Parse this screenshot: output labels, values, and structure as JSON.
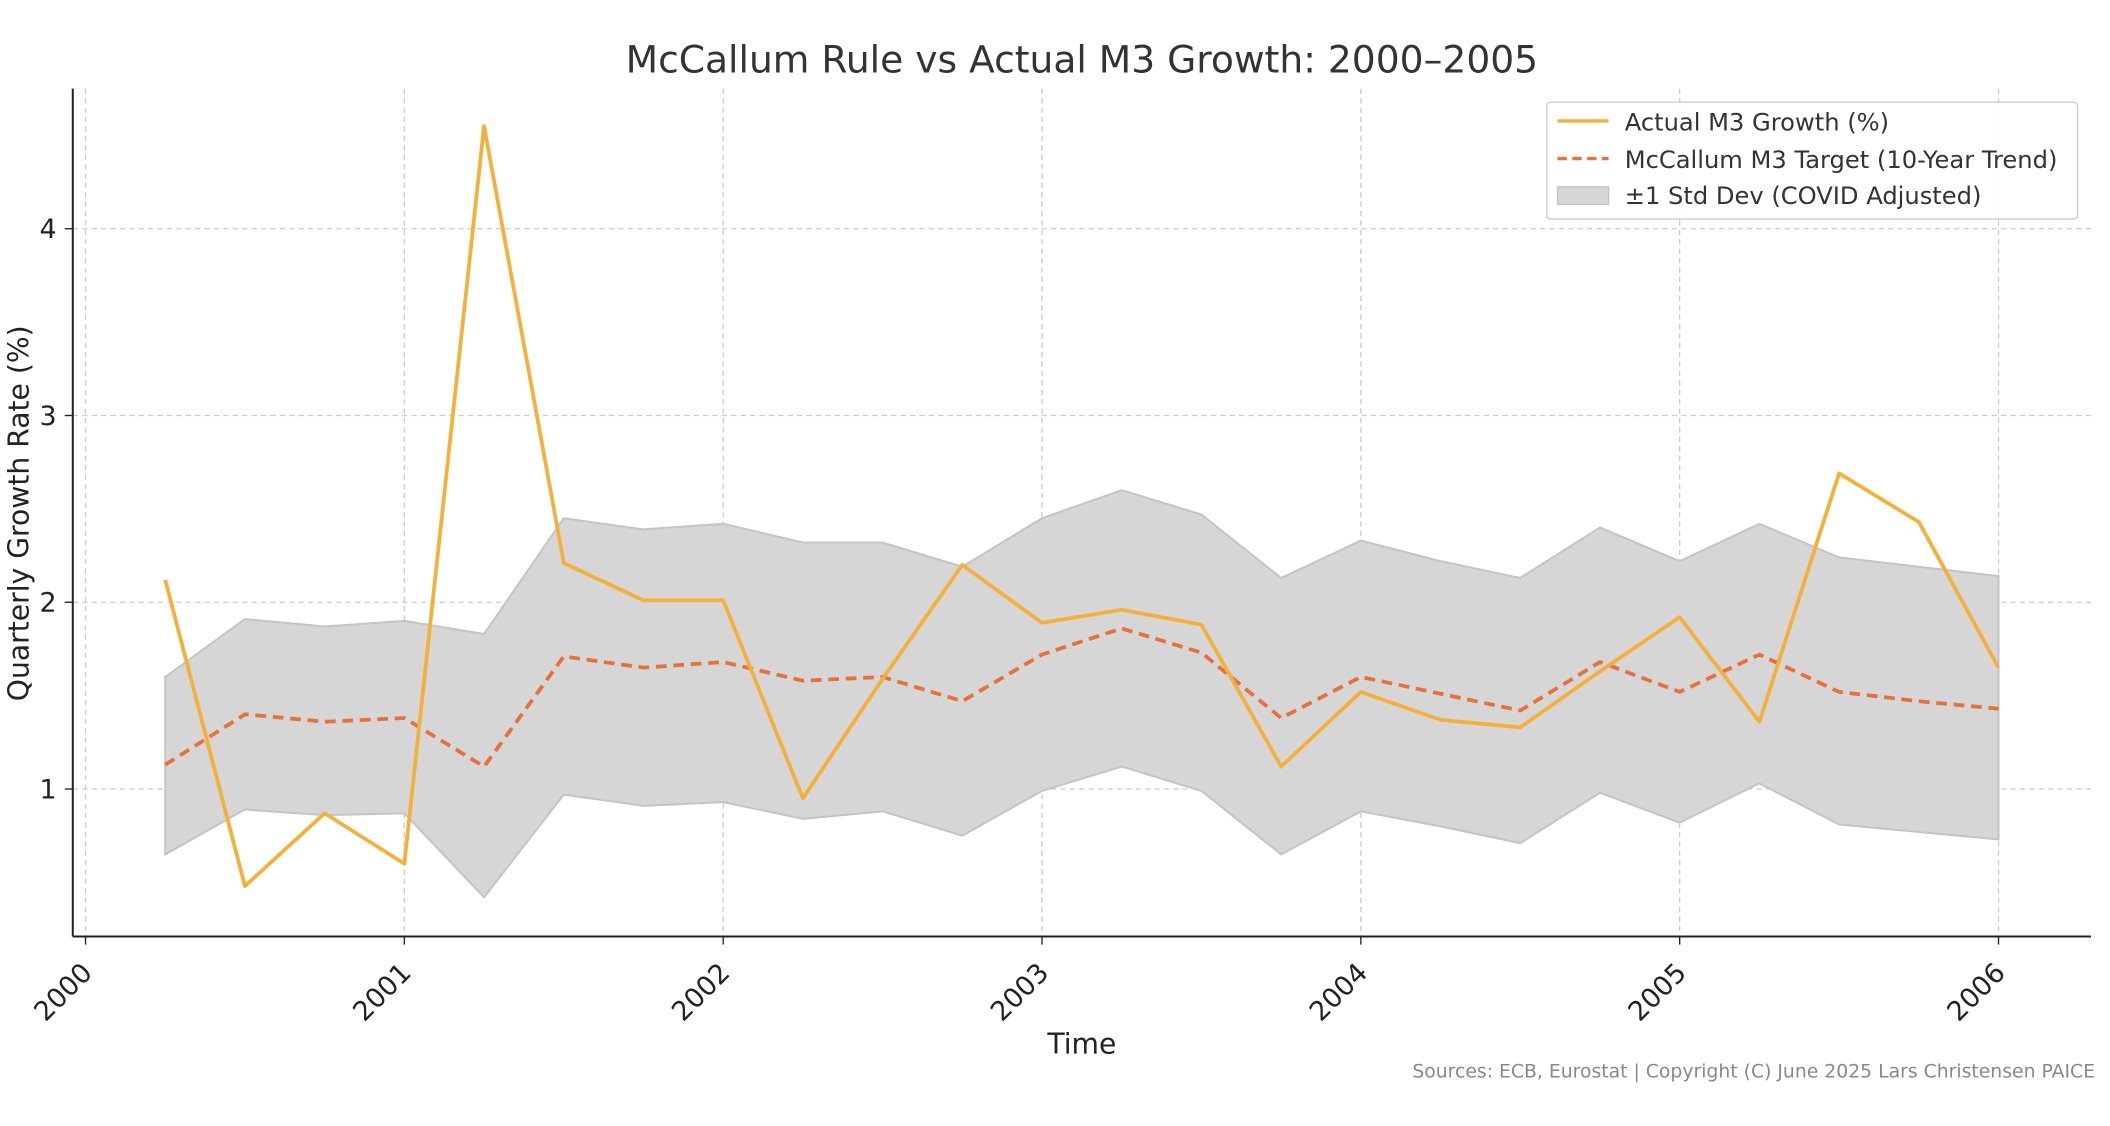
{
  "chart_data": {
    "type": "line",
    "title": "McCallum Rule vs Actual M3 Growth: 2000–2005",
    "xlabel": "Time",
    "ylabel": "Quarterly Growth Rate (%)",
    "xlim": [
      1999.96,
      2006.29
    ],
    "ylim": [
      0.21,
      4.75
    ],
    "xticks": [
      2000,
      2001,
      2002,
      2003,
      2004,
      2005,
      2006
    ],
    "xtick_labels": [
      "2000",
      "2001",
      "2002",
      "2003",
      "2004",
      "2005",
      "2006"
    ],
    "yticks": [
      1,
      2,
      3,
      4
    ],
    "ytick_labels": [
      "1",
      "2",
      "3",
      "4"
    ],
    "grid": true,
    "legend_placement": "top-right",
    "x": [
      2000.25,
      2000.5,
      2000.75,
      2001.0,
      2001.25,
      2001.5,
      2001.75,
      2002.0,
      2002.25,
      2002.5,
      2002.75,
      2003.0,
      2003.25,
      2003.5,
      2003.75,
      2004.0,
      2004.25,
      2004.5,
      2004.75,
      2005.0,
      2005.25,
      2005.5,
      2005.75,
      2006.0
    ],
    "series": [
      {
        "name": "Actual M3 Growth (%)",
        "color": "#f4b03a",
        "style": "solid",
        "values": [
          2.12,
          0.48,
          0.87,
          0.6,
          4.55,
          2.21,
          2.01,
          2.01,
          0.95,
          1.59,
          2.2,
          1.89,
          1.96,
          1.88,
          1.12,
          1.52,
          1.37,
          1.33,
          1.63,
          1.92,
          1.36,
          2.69,
          2.43,
          1.65
        ]
      },
      {
        "name": "McCallum M3 Target (10-Year Trend)",
        "color": "#e8703a",
        "style": "dashed",
        "values": [
          1.13,
          1.4,
          1.36,
          1.38,
          1.12,
          1.71,
          1.65,
          1.68,
          1.58,
          1.6,
          1.47,
          1.72,
          1.86,
          1.73,
          1.38,
          1.6,
          1.51,
          1.42,
          1.68,
          1.52,
          1.72,
          1.52,
          1.47,
          1.43
        ]
      }
    ],
    "band": {
      "name": "±1 Std Dev (COVID Adjusted)",
      "color": "#d6d6d6",
      "upper": [
        1.6,
        1.91,
        1.87,
        1.9,
        1.83,
        2.45,
        2.39,
        2.42,
        2.32,
        2.32,
        2.19,
        2.45,
        2.6,
        2.47,
        2.13,
        2.33,
        2.22,
        2.13,
        2.4,
        2.22,
        2.42,
        2.24,
        2.19,
        2.14
      ],
      "lower": [
        0.65,
        0.89,
        0.86,
        0.87,
        0.42,
        0.97,
        0.91,
        0.93,
        0.84,
        0.88,
        0.75,
        0.99,
        1.12,
        0.99,
        0.65,
        0.88,
        0.8,
        0.71,
        0.98,
        0.82,
        1.03,
        0.81,
        0.77,
        0.73
      ]
    },
    "annotation": "Sources: ECB, Eurostat | Copyright (C) June 2025 Lars Christensen PAICE"
  }
}
